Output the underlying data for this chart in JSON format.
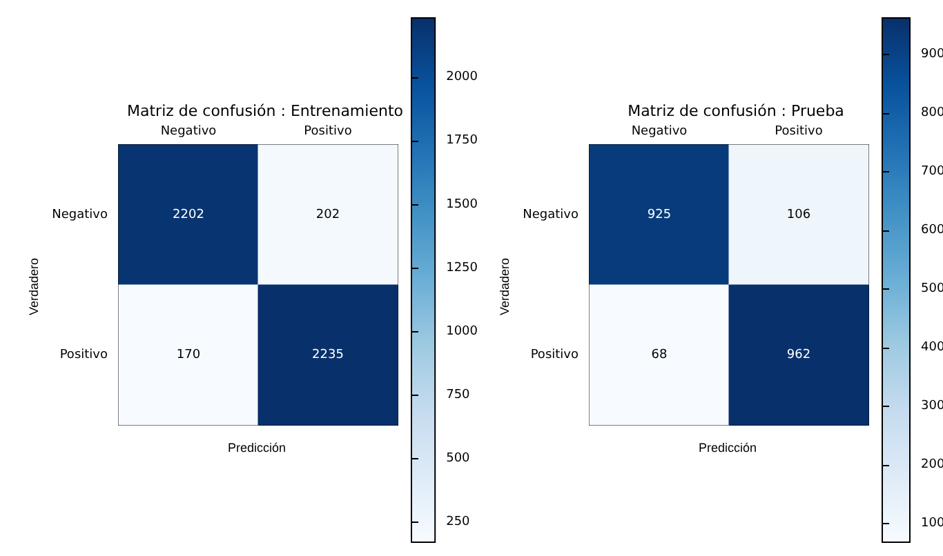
{
  "chart_data": [
    {
      "type": "heatmap",
      "title": "Matriz de confusión : Entrenamiento",
      "xlabel": "Predicción",
      "ylabel": "Verdadero",
      "categories": [
        "Negativo",
        "Positivo"
      ],
      "y_categories": [
        "Negativo",
        "Positivo"
      ],
      "cells": [
        [
          2202,
          202
        ],
        [
          170,
          2235
        ]
      ],
      "data_labels": true,
      "clim": [
        170,
        2235
      ],
      "cticks": [
        250,
        500,
        750,
        1000,
        1250,
        1500,
        1750,
        2000
      ]
    },
    {
      "type": "heatmap",
      "title": "Matriz de confusión : Prueba",
      "xlabel": "Predicción",
      "ylabel": "Verdadero",
      "categories": [
        "Negativo",
        "Positivo"
      ],
      "y_categories": [
        "Negativo",
        "Positivo"
      ],
      "cells": [
        [
          925,
          106
        ],
        [
          68,
          962
        ]
      ],
      "data_labels": true,
      "clim": [
        68,
        962
      ],
      "cticks": [
        100,
        200,
        300,
        400,
        500,
        600,
        700,
        800,
        900
      ]
    }
  ]
}
